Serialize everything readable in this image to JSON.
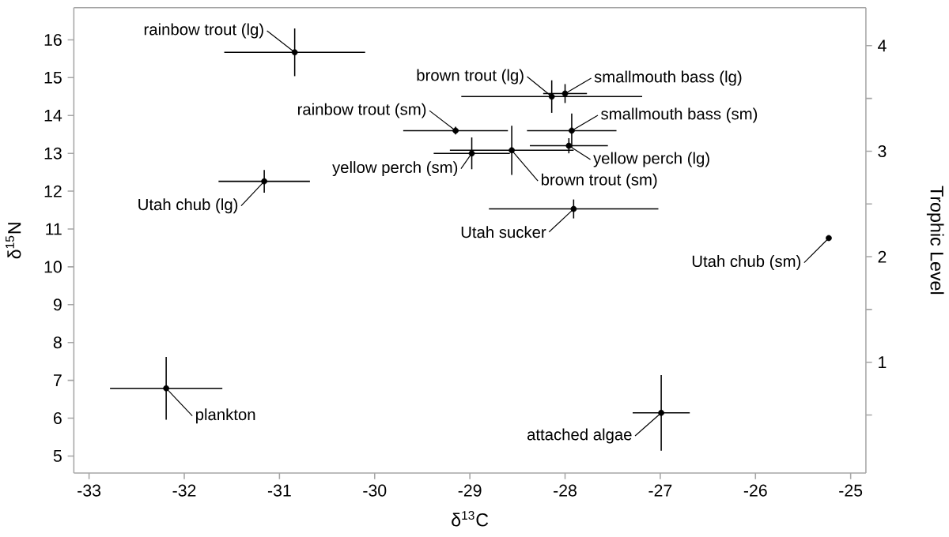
{
  "chart_data": {
    "type": "scatter",
    "xlabel": "δ$^{13}$C",
    "ylabel": "δ$^{15}$N",
    "y2label": "Trophic Level",
    "xlim": [
      -33.16,
      -24.84
    ],
    "xticks": [
      -33,
      -32,
      -31,
      -30,
      -29,
      -28,
      -27,
      -26,
      -25
    ],
    "ylim": [
      4.55,
      16.85
    ],
    "yticks": [
      5,
      6,
      7,
      8,
      9,
      10,
      11,
      12,
      13,
      14,
      15,
      16
    ],
    "y2lim": [
      -0.05,
      4.36
    ],
    "y2ticks": [
      {
        "value": 0.5,
        "label": null
      },
      1,
      {
        "value": 1.5,
        "label": null
      },
      2,
      {
        "value": 2.5,
        "label": null
      },
      3,
      {
        "value": 3.5,
        "label": null
      },
      4
    ],
    "marker": "circle",
    "series": [
      {
        "color": "#000000",
        "x": [
          -30.84,
          -28.14,
          -28.0,
          -29.15,
          -27.93,
          -28.98,
          -27.96,
          -28.56,
          -31.16,
          -27.91,
          -25.23,
          -32.19,
          -26.99
        ],
        "values": [
          15.67,
          14.5,
          14.58,
          13.6,
          13.6,
          13.0,
          13.2,
          13.08,
          12.26,
          11.53,
          10.76,
          6.79,
          6.14
        ],
        "errors": [
          0.63,
          0.43,
          0.25,
          0.1,
          0.45,
          0.42,
          0.2,
          0.65,
          0.3,
          0.25,
          null,
          0.83,
          1.0
        ],
        "xerrors": [
          0.74,
          0.95,
          0.23,
          0.55,
          0.47,
          0.4,
          0.41,
          0.65,
          0.48,
          0.89,
          null,
          0.59,
          0.3
        ]
      }
    ],
    "annotations": [
      {
        "text": "rainbow trout (lg)",
        "x": -30.84,
        "y": 15.67
      },
      {
        "text": "brown trout (lg)",
        "x": -28.14,
        "y": 14.5
      },
      {
        "text": "smallmouth bass (lg)",
        "x": -28.0,
        "y": 14.58
      },
      {
        "text": "rainbow trout (sm)",
        "x": -29.15,
        "y": 13.6
      },
      {
        "text": "smallmouth bass (sm)",
        "x": -27.93,
        "y": 13.6
      },
      {
        "text": "yellow perch (sm)",
        "x": -28.98,
        "y": 13.0
      },
      {
        "text": "yellow perch (lg)",
        "x": -27.96,
        "y": 13.2
      },
      {
        "text": "brown trout (sm)",
        "x": -28.56,
        "y": 13.08
      },
      {
        "text": "Utah chub (lg)",
        "x": -31.16,
        "y": 12.26
      },
      {
        "text": "Utah sucker",
        "x": -27.91,
        "y": 11.53
      },
      {
        "text": "Utah chub (sm)",
        "x": -25.23,
        "y": 10.76
      },
      {
        "text": "plankton",
        "x": -32.19,
        "y": 6.79
      },
      {
        "text": "attached algae",
        "x": -26.99,
        "y": 6.14
      }
    ]
  }
}
